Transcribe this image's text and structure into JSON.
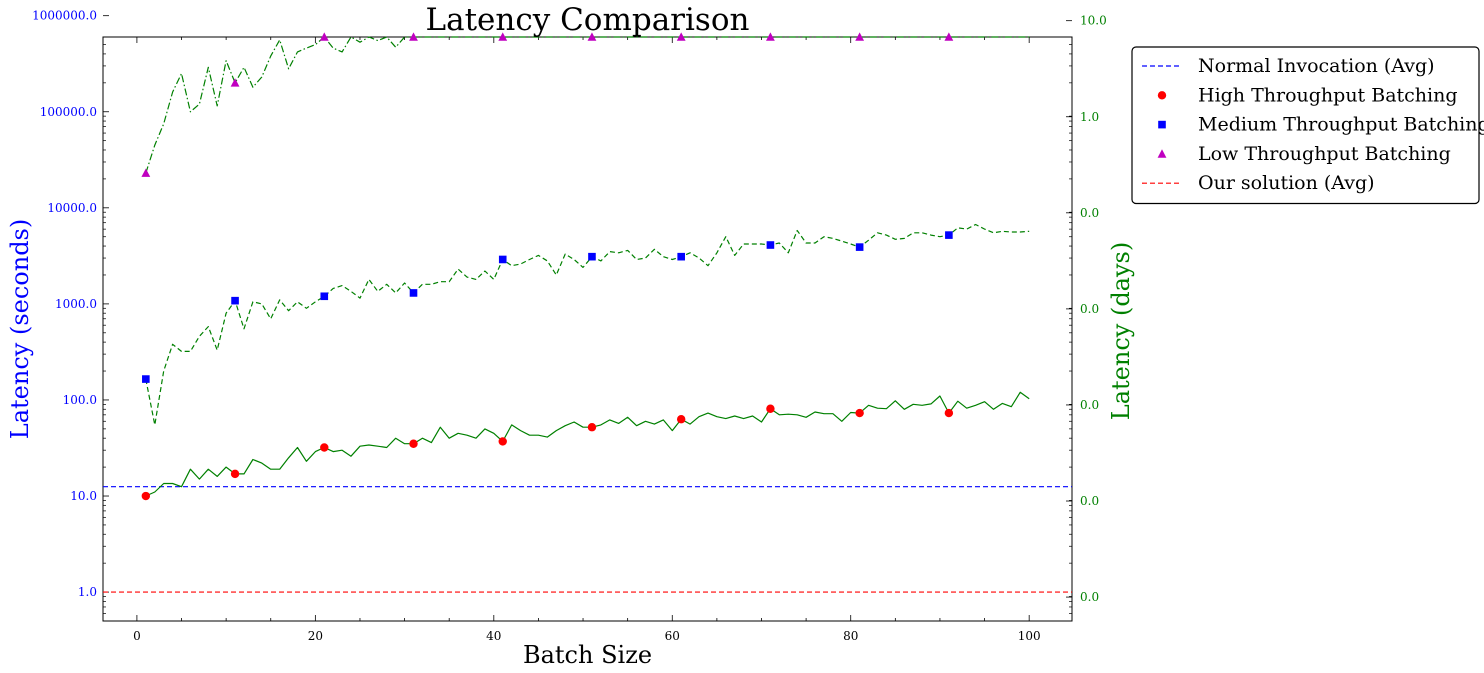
{
  "chart_data": {
    "type": "line",
    "title": "Latency Comparison",
    "xlabel": "Batch Size",
    "ylabel": "Latency (seconds)",
    "ylabel_right": "Latency (days)",
    "yscale": "log",
    "xlim": [
      -3.8,
      104.8
    ],
    "ylim": [
      0.5,
      600000
    ],
    "x_ticks": [
      0,
      20,
      40,
      60,
      80,
      100
    ],
    "x_tick_labels": [
      "0",
      "20",
      "40",
      "60",
      "80",
      "100"
    ],
    "y_ticks": [
      1,
      10,
      100,
      1000,
      10000,
      100000,
      1000000
    ],
    "y_tick_labels": [
      "1.0",
      "10.0",
      "100.0",
      "1000.0",
      "10000.0",
      "100000.0",
      "1000000.0"
    ],
    "y_right_ticks": [
      1,
      10,
      100,
      1000,
      10000,
      100000,
      1000000
    ],
    "y_right_tick_labels": [
      "0.0",
      "0.0",
      "0.0",
      "0.0",
      "0.0",
      "1.0",
      "10.0"
    ],
    "legend_position": "outside upper right",
    "grid": false,
    "colors": {
      "normal": "#0000ff",
      "high": "#ff0000",
      "medium": "#0000ff",
      "low": "#c000c0",
      "curves": "#008000",
      "ours": "#ff0000",
      "left_axis": "#0000ff",
      "right_axis": "#008000"
    },
    "series": [
      {
        "name": "Normal Invocation (Avg)",
        "kind": "hline",
        "value": 12.5,
        "style": "dashed",
        "color": "#0000ff"
      },
      {
        "name": "High Throughput Batching",
        "kind": "markers",
        "marker": "circle",
        "color": "#ff0000",
        "x": [
          1,
          11,
          21,
          31,
          41,
          51,
          61,
          71,
          81,
          91
        ],
        "y": [
          10,
          17,
          32,
          35,
          37,
          52,
          63,
          81,
          73,
          73
        ]
      },
      {
        "name": "Medium Throughput Batching",
        "kind": "markers",
        "marker": "square",
        "color": "#0000ff",
        "x": [
          1,
          11,
          21,
          31,
          41,
          51,
          61,
          71,
          81,
          91
        ],
        "y": [
          165,
          1080,
          1200,
          1300,
          2900,
          3100,
          3100,
          4100,
          3900,
          5200
        ]
      },
      {
        "name": "Low Throughput Batching",
        "kind": "markers",
        "marker": "triangle",
        "color": "#c000c0",
        "x": [
          1,
          11,
          21,
          31,
          41,
          51,
          61,
          71,
          81,
          91
        ],
        "y": [
          23000,
          200000,
          650000,
          650000,
          1200000,
          1200000,
          1750000,
          2100000,
          1850000,
          2350000
        ]
      },
      {
        "name": "Our solution (Avg)",
        "kind": "hline",
        "value": 1.0,
        "style": "dashed",
        "color": "#ff0000"
      },
      {
        "kind": "line",
        "style": "solid",
        "color": "#008000",
        "x": [
          1,
          2,
          3,
          4,
          5,
          6,
          7,
          8,
          9,
          10,
          11,
          12,
          13,
          14,
          15,
          16,
          17,
          18,
          19,
          20,
          21,
          22,
          23,
          24,
          25,
          26,
          27,
          28,
          29,
          30,
          31,
          32,
          33,
          34,
          35,
          36,
          37,
          38,
          39,
          40,
          41,
          42,
          43,
          44,
          45,
          46,
          47,
          48,
          49,
          50,
          51,
          52,
          53,
          54,
          55,
          56,
          57,
          58,
          59,
          60,
          61,
          62,
          63,
          64,
          65,
          66,
          67,
          68,
          69,
          70,
          71,
          72,
          73,
          74,
          75,
          76,
          77,
          78,
          79,
          80,
          81,
          82,
          83,
          84,
          85,
          86,
          87,
          88,
          89,
          90,
          91,
          92,
          93,
          94,
          95,
          96,
          97,
          98,
          99,
          100
        ],
        "y": [
          10,
          11,
          13.5,
          13.5,
          12.5,
          19,
          15,
          19,
          16,
          20,
          17,
          17,
          24,
          22,
          19,
          19,
          25,
          32,
          23,
          29,
          32,
          29,
          30,
          26,
          33,
          34,
          33,
          32,
          40,
          35,
          35,
          40,
          36,
          52,
          40,
          45,
          43,
          40,
          50,
          45,
          37,
          55,
          48,
          43,
          43,
          41,
          48,
          54,
          59,
          52,
          52,
          55,
          62,
          57,
          66,
          54,
          60,
          56,
          62,
          48,
          63,
          56,
          67,
          73,
          67,
          64,
          68,
          64,
          68,
          59,
          81,
          70,
          71,
          70,
          66,
          75,
          72,
          72,
          60,
          74,
          73,
          88,
          82,
          81,
          98,
          80,
          90,
          88,
          91,
          110,
          73,
          97,
          82,
          88,
          96,
          80,
          92,
          85,
          120,
          103
        ]
      },
      {
        "kind": "line",
        "style": "dashed",
        "color": "#008000",
        "x": [
          1,
          2,
          3,
          4,
          5,
          6,
          7,
          8,
          9,
          10,
          11,
          12,
          13,
          14,
          15,
          16,
          17,
          18,
          19,
          20,
          21,
          22,
          23,
          24,
          25,
          26,
          27,
          28,
          29,
          30,
          31,
          32,
          33,
          34,
          35,
          36,
          37,
          38,
          39,
          40,
          41,
          42,
          43,
          44,
          45,
          46,
          47,
          48,
          49,
          50,
          51,
          52,
          53,
          54,
          55,
          56,
          57,
          58,
          59,
          60,
          61,
          62,
          63,
          64,
          65,
          66,
          67,
          68,
          69,
          70,
          71,
          72,
          73,
          74,
          75,
          76,
          77,
          78,
          79,
          80,
          81,
          82,
          83,
          84,
          85,
          86,
          87,
          88,
          89,
          90,
          91,
          92,
          93,
          94,
          95,
          96,
          97,
          98,
          99,
          100
        ],
        "y": [
          165,
          55,
          200,
          380,
          320,
          320,
          460,
          580,
          330,
          800,
          1080,
          550,
          1050,
          1000,
          700,
          1100,
          850,
          1050,
          900,
          1050,
          1200,
          1450,
          1550,
          1350,
          1150,
          1800,
          1350,
          1600,
          1300,
          1650,
          1300,
          1600,
          1600,
          1700,
          1700,
          2300,
          1900,
          1800,
          2200,
          1800,
          2900,
          2500,
          2600,
          2900,
          3200,
          2800,
          2000,
          3300,
          2900,
          2400,
          3100,
          2800,
          3500,
          3400,
          3600,
          2900,
          3000,
          3700,
          3100,
          2900,
          3100,
          3400,
          3000,
          2500,
          3400,
          5000,
          3200,
          4200,
          4200,
          4200,
          4100,
          4300,
          3400,
          5800,
          4300,
          4300,
          5000,
          4800,
          4500,
          4200,
          3900,
          4600,
          5500,
          5200,
          4700,
          4800,
          5500,
          5500,
          5200,
          5000,
          5200,
          6200,
          6000,
          6700,
          6000,
          5500,
          5700,
          5600,
          5600,
          5700
        ]
      },
      {
        "kind": "line",
        "style": "dashdot",
        "color": "#008000",
        "x": [
          1,
          2,
          3,
          4,
          5,
          6,
          7,
          8,
          9,
          10,
          11,
          12,
          13,
          14,
          15,
          16,
          17,
          18,
          19,
          20,
          21,
          22,
          23,
          24,
          25,
          26,
          27,
          28,
          29,
          30,
          31,
          32,
          33,
          34,
          35,
          36,
          37,
          38,
          39,
          40,
          41,
          42,
          43,
          44,
          45,
          46,
          47,
          48,
          49,
          50,
          51,
          52,
          53,
          54,
          55,
          56,
          57,
          58,
          59,
          60,
          61,
          62,
          63,
          64,
          65,
          66,
          67,
          68,
          69,
          70,
          71,
          72,
          73,
          74,
          75,
          76,
          77,
          78,
          79,
          80,
          81,
          82,
          83,
          84,
          85,
          86,
          87,
          88,
          89,
          90,
          91,
          92,
          93,
          94,
          95,
          96,
          97,
          98,
          99,
          100
        ],
        "y": [
          23000,
          45000,
          75000,
          160000,
          250000,
          100000,
          120000,
          290000,
          115000,
          340000,
          200000,
          290000,
          180000,
          230000,
          380000,
          560000,
          280000,
          420000,
          460000,
          500000,
          650000,
          460000,
          420000,
          600000,
          530000,
          620000,
          550000,
          650000,
          470000,
          770000,
          650000,
          850000,
          750000,
          680000,
          680000,
          700000,
          1150000,
          1000000,
          1100000,
          1050000,
          1200000,
          900000,
          1300000,
          900000,
          1400000,
          900000,
          1050000,
          1300000,
          1350000,
          1800000,
          1200000,
          1550000,
          1400000,
          1000000,
          1750000,
          1200000,
          1650000,
          1850000,
          1850000,
          1550000,
          1750000,
          1750000,
          1700000,
          1800000,
          1900000,
          1550000,
          1500000,
          1600000,
          1700000,
          2100000,
          2100000,
          1650000,
          2100000,
          2050000,
          2000000,
          2300000,
          2000000,
          1650000,
          1900000,
          2300000,
          1850000,
          2700000,
          1850000,
          1800000,
          2200000,
          1800000,
          2000000,
          2500000,
          2500000,
          2400000,
          2350000,
          2400000,
          2200000,
          2600000,
          2600000,
          2400000,
          2450000,
          2650000,
          2900000,
          2650000
        ]
      }
    ]
  }
}
